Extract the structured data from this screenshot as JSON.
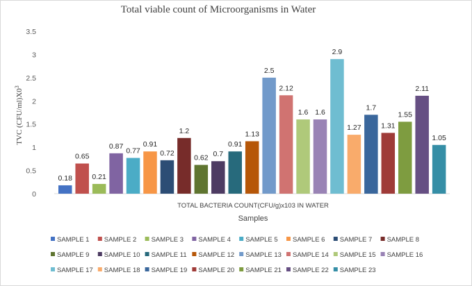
{
  "chart_data": {
    "type": "bar",
    "title": "Total viable  count of Microorganisms  in Water",
    "ylabel": "TVC (CFU/ml)X0",
    "ylabel_superscript": "3",
    "category_label": "TOTAL BACTERIA COUNT(CFU/g)x103 IN WATER",
    "xlabel": "Samples",
    "ylim": [
      0,
      3.5
    ],
    "yticks": [
      "0",
      "0.5",
      "1",
      "1.5",
      "2",
      "2.5",
      "3",
      "3.5"
    ],
    "grid": false,
    "legend_position": "bottom",
    "series": [
      {
        "name": "SAMPLE 1",
        "value": 0.18,
        "label": "0.18",
        "color": "#4472C4"
      },
      {
        "name": "SAMPLE 2",
        "value": 0.65,
        "label": "0.65",
        "color": "#C0504D"
      },
      {
        "name": "SAMPLE 3",
        "value": 0.21,
        "label": "0.21",
        "color": "#9BBB59"
      },
      {
        "name": "SAMPLE 4",
        "value": 0.87,
        "label": "0.87",
        "color": "#8064A2"
      },
      {
        "name": "SAMPLE 5",
        "value": 0.77,
        "label": "0.77",
        "color": "#4BACC6"
      },
      {
        "name": "SAMPLE 6",
        "value": 0.91,
        "label": "0.91",
        "color": "#F79646"
      },
      {
        "name": "SAMPLE 7",
        "value": 0.72,
        "label": "0.72",
        "color": "#2C4D75"
      },
      {
        "name": "SAMPLE 8",
        "value": 1.2,
        "label": "1.2",
        "color": "#772C2A"
      },
      {
        "name": "SAMPLE 9",
        "value": 0.62,
        "label": "0.62",
        "color": "#5F7530"
      },
      {
        "name": "SAMPLE 10",
        "value": 0.7,
        "label": "0.7",
        "color": "#4D3B62"
      },
      {
        "name": "SAMPLE 11",
        "value": 0.91,
        "label": "0.91",
        "color": "#276A7C"
      },
      {
        "name": "SAMPLE 12",
        "value": 1.13,
        "label": "1.13",
        "color": "#B65708"
      },
      {
        "name": "SAMPLE 13",
        "value": 2.5,
        "label": "2.5",
        "color": "#729ACA"
      },
      {
        "name": "SAMPLE 14",
        "value": 2.12,
        "label": "2.12",
        "color": "#D07371"
      },
      {
        "name": "SAMPLE 15",
        "value": 1.6,
        "label": "1.6",
        "color": "#AFC97A"
      },
      {
        "name": "SAMPLE 16",
        "value": 1.6,
        "label": "1.6",
        "color": "#9983B5"
      },
      {
        "name": "SAMPLE 17",
        "value": 2.9,
        "label": "2.9",
        "color": "#6FBDD1"
      },
      {
        "name": "SAMPLE 18",
        "value": 1.27,
        "label": "1.27",
        "color": "#F9AB6B"
      },
      {
        "name": "SAMPLE 19",
        "value": 1.7,
        "label": "1.7",
        "color": "#3A679C"
      },
      {
        "name": "SAMPLE 20",
        "value": 1.31,
        "label": "1.31",
        "color": "#9F3B38"
      },
      {
        "name": "SAMPLE 21",
        "value": 1.55,
        "label": "1.55",
        "color": "#7E9C40"
      },
      {
        "name": "SAMPLE 22",
        "value": 2.11,
        "label": "2.11",
        "color": "#664F83"
      },
      {
        "name": "SAMPLE 23",
        "value": 1.05,
        "label": "1.05",
        "color": "#358EA6"
      }
    ]
  }
}
